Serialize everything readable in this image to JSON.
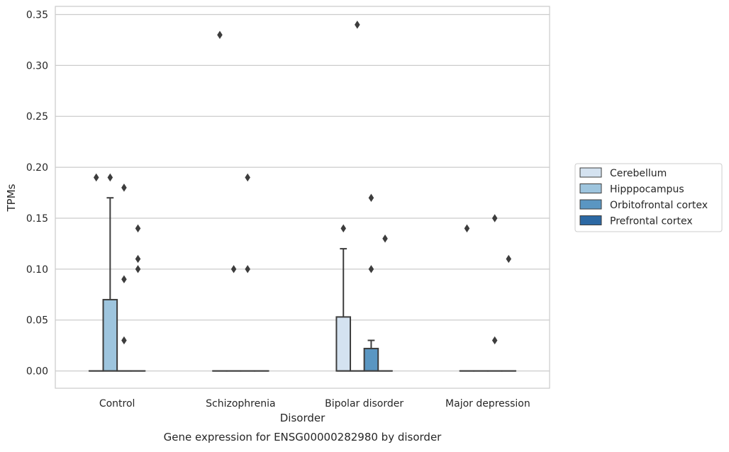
{
  "chart_data": {
    "type": "box",
    "title": "",
    "caption": "Gene expression for ENSG00000282980 by disorder",
    "xlabel": "Disorder",
    "ylabel": "TPMs",
    "ylim": [
      -0.017,
      0.358
    ],
    "yticks": [
      "0.00",
      "0.05",
      "0.10",
      "0.15",
      "0.20",
      "0.25",
      "0.30",
      "0.35"
    ],
    "ytick_values": [
      0,
      0.05,
      0.1,
      0.15,
      0.2,
      0.25,
      0.3,
      0.35
    ],
    "categories": [
      "Control",
      "Schizophrenia",
      "Bipolar disorder",
      "Major depression"
    ],
    "grid": "horizontal",
    "legend_position": "right",
    "series": [
      {
        "name": "Cerebellum",
        "color": "#d4e2f0",
        "boxes": [
          {
            "category": "Control",
            "q1": 0,
            "median": 0,
            "q3": 0,
            "whisker_low": 0,
            "whisker_high": 0,
            "outliers": [
              0.19
            ]
          },
          {
            "category": "Schizophrenia",
            "q1": 0,
            "median": 0,
            "q3": 0,
            "whisker_low": 0,
            "whisker_high": 0,
            "outliers": [
              0.33
            ]
          },
          {
            "category": "Bipolar disorder",
            "q1": 0,
            "median": 0,
            "q3": 0.053,
            "whisker_low": 0,
            "whisker_high": 0.12,
            "outliers": [
              0.14
            ]
          },
          {
            "category": "Major depression",
            "q1": 0,
            "median": 0,
            "q3": 0,
            "whisker_low": 0,
            "whisker_high": 0,
            "outliers": [
              0.14
            ]
          }
        ]
      },
      {
        "name": "Hipppocampus",
        "color": "#9ec5de",
        "boxes": [
          {
            "category": "Control",
            "q1": 0,
            "median": 0,
            "q3": 0.07,
            "whisker_low": 0,
            "whisker_high": 0.17,
            "outliers": [
              0.19
            ]
          },
          {
            "category": "Schizophrenia",
            "q1": 0,
            "median": 0,
            "q3": 0,
            "whisker_low": 0,
            "whisker_high": 0,
            "outliers": [
              0.1
            ]
          },
          {
            "category": "Bipolar disorder",
            "q1": 0,
            "median": 0,
            "q3": 0,
            "whisker_low": 0,
            "whisker_high": 0,
            "outliers": [
              0.34
            ]
          },
          {
            "category": "Major depression",
            "q1": 0,
            "median": 0,
            "q3": 0,
            "whisker_low": 0,
            "whisker_high": 0,
            "outliers": []
          }
        ]
      },
      {
        "name": "Orbitofrontal cortex",
        "color": "#5a96c2",
        "boxes": [
          {
            "category": "Control",
            "q1": 0,
            "median": 0,
            "q3": 0,
            "whisker_low": 0,
            "whisker_high": 0,
            "outliers": [
              0.18,
              0.09,
              0.03
            ]
          },
          {
            "category": "Schizophrenia",
            "q1": 0,
            "median": 0,
            "q3": 0,
            "whisker_low": 0,
            "whisker_high": 0,
            "outliers": [
              0.19,
              0.1
            ]
          },
          {
            "category": "Bipolar disorder",
            "q1": 0,
            "median": 0,
            "q3": 0.022,
            "whisker_low": 0,
            "whisker_high": 0.03,
            "outliers": [
              0.17,
              0.1
            ]
          },
          {
            "category": "Major depression",
            "q1": 0,
            "median": 0,
            "q3": 0,
            "whisker_low": 0,
            "whisker_high": 0,
            "outliers": [
              0.15,
              0.03
            ]
          }
        ]
      },
      {
        "name": "Prefrontal cortex",
        "color": "#2c68a3",
        "boxes": [
          {
            "category": "Control",
            "q1": 0,
            "median": 0,
            "q3": 0,
            "whisker_low": 0,
            "whisker_high": 0,
            "outliers": [
              0.14,
              0.11,
              0.1
            ]
          },
          {
            "category": "Schizophrenia",
            "q1": 0,
            "median": 0,
            "q3": 0,
            "whisker_low": 0,
            "whisker_high": 0,
            "outliers": []
          },
          {
            "category": "Bipolar disorder",
            "q1": 0,
            "median": 0,
            "q3": 0,
            "whisker_low": 0,
            "whisker_high": 0,
            "outliers": [
              0.13
            ]
          },
          {
            "category": "Major depression",
            "q1": 0,
            "median": 0,
            "q3": 0,
            "whisker_low": 0,
            "whisker_high": 0,
            "outliers": [
              0.11
            ]
          }
        ]
      }
    ]
  }
}
